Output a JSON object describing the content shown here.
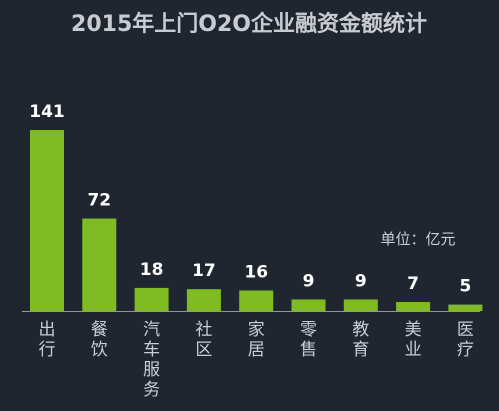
{
  "chart_data": {
    "type": "bar",
    "title": "2015年上门O2O企业融资金额统计",
    "unit_label": "单位：亿元",
    "categories": [
      "出行",
      "餐饮",
      "汽车服务",
      "社区",
      "家居",
      "零售",
      "教育",
      "美业",
      "医疗"
    ],
    "values": [
      141,
      72,
      18,
      17,
      16,
      9,
      9,
      7,
      5
    ],
    "value_labels": [
      "141",
      "72",
      "18",
      "17",
      "16",
      "9",
      "9",
      "7",
      "5"
    ],
    "xlabel": "",
    "ylabel": "",
    "ylim": [
      0,
      141
    ],
    "grid": false,
    "legend": "none",
    "colors": {
      "background": "#202630",
      "bar": "#7fbb22",
      "baseline": "#8e96a0",
      "title": "#c8ccd2",
      "value_label": "#ffffff",
      "category_label": "#c9ced6"
    }
  }
}
